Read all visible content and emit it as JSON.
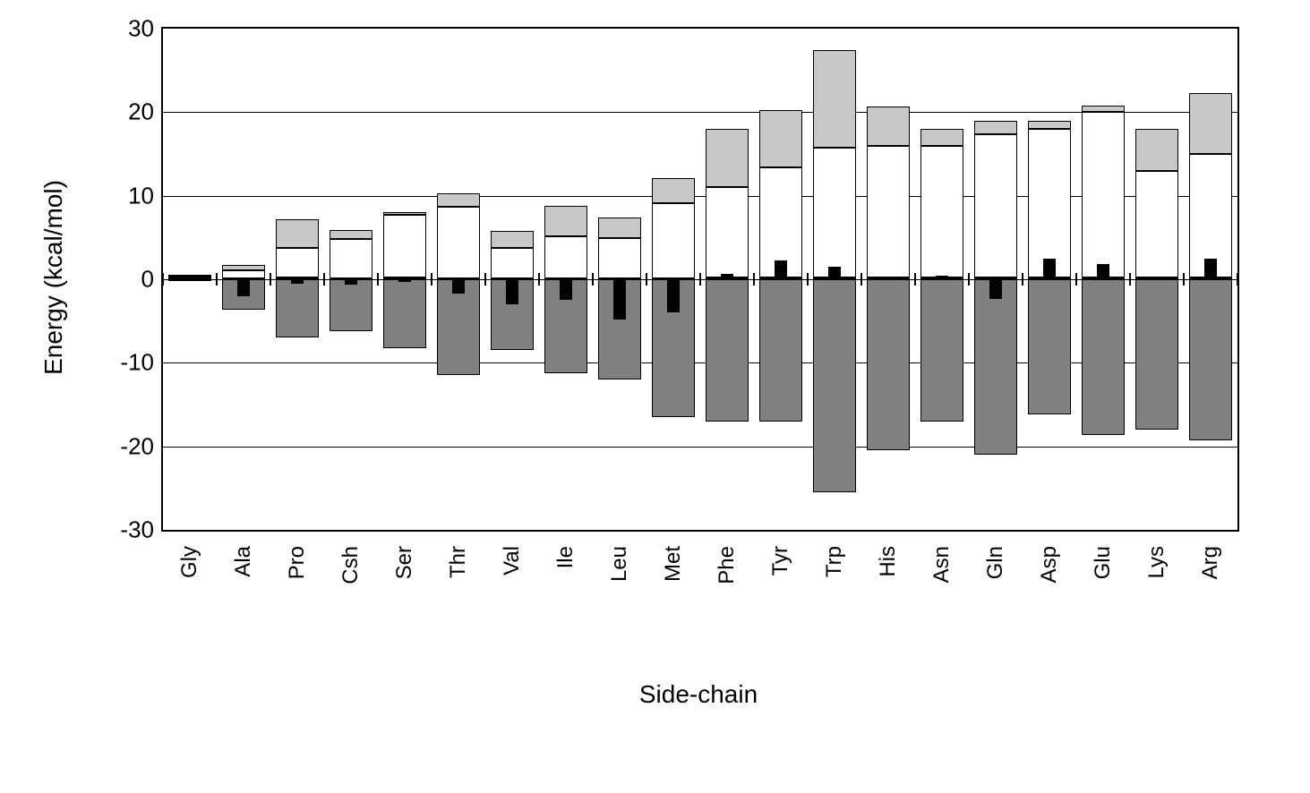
{
  "chart": {
    "type": "stacked-bar-with-negative",
    "ylabel": "Energy (kcal/mol)",
    "xlabel": "Side-chain",
    "background_color": "#ffffff",
    "grid_color": "#000000",
    "axis_color": "#000000",
    "label_fontsize": 28,
    "tick_fontsize": 26,
    "category_fontsize": 24,
    "ylim": [
      -30,
      30
    ],
    "yticks": [
      -30,
      -20,
      -10,
      0,
      10,
      20,
      30
    ],
    "gridlines_at": [
      -20,
      -10,
      0,
      10,
      20
    ],
    "colors": {
      "light_gray": "#c8c8c8",
      "white": "#ffffff",
      "dark_gray": "#808080",
      "black": "#000000",
      "border": "#000000"
    },
    "bar_group_width": 0.8,
    "black_bar_width": 0.22,
    "categories": [
      "Gly",
      "Ala",
      "Pro",
      "Csh",
      "Ser",
      "Thr",
      "Val",
      "Ile",
      "Leu",
      "Met",
      "Phe",
      "Tyr",
      "Trp",
      "His",
      "Asn",
      "Gln",
      "Asp",
      "Glu",
      "Lys",
      "Arg"
    ],
    "series_comment": "Stacked bar has three segments on the positive side (dark_gray base from 0 up, white middle, light_gray top) and a dark_gray segment on the negative side from 0 down; a narrow black bar is overlaid centered on the group going from 0 to its value.",
    "points": [
      {
        "cat": "Gly",
        "neg": -0.2,
        "dark_pos": 0.15,
        "white": 0.2,
        "light": 0.2,
        "black": 0.3
      },
      {
        "cat": "Ala",
        "neg": -3.6,
        "dark_pos": 0.1,
        "white": 1.0,
        "light": 0.6,
        "black": -2.0
      },
      {
        "cat": "Pro",
        "neg": -7.0,
        "dark_pos": 0.2,
        "white": 3.5,
        "light": 3.5,
        "black": -0.5
      },
      {
        "cat": "Csh",
        "neg": -6.2,
        "dark_pos": 0.15,
        "white": 4.7,
        "light": 1.0,
        "black": -0.6
      },
      {
        "cat": "Ser",
        "neg": -8.3,
        "dark_pos": 0.2,
        "white": 7.5,
        "light": 0.3,
        "black": -0.3
      },
      {
        "cat": "Thr",
        "neg": -11.5,
        "dark_pos": 0.15,
        "white": 8.5,
        "light": 1.6,
        "black": -1.7
      },
      {
        "cat": "Val",
        "neg": -8.5,
        "dark_pos": 0.1,
        "white": 3.7,
        "light": 2.0,
        "black": -3.0
      },
      {
        "cat": "Ile",
        "neg": -11.2,
        "dark_pos": 0.15,
        "white": 5.0,
        "light": 3.6,
        "black": -2.5
      },
      {
        "cat": "Leu",
        "neg": -12.0,
        "dark_pos": 0.1,
        "white": 4.8,
        "light": 2.5,
        "black": -4.8
      },
      {
        "cat": "Met",
        "neg": -16.5,
        "dark_pos": 0.15,
        "white": 9.0,
        "light": 3.0,
        "black": -4.0
      },
      {
        "cat": "Phe",
        "neg": -17.0,
        "dark_pos": 0.2,
        "white": 10.8,
        "light": 7.0,
        "black": 0.6
      },
      {
        "cat": "Tyr",
        "neg": -17.0,
        "dark_pos": 0.2,
        "white": 13.2,
        "light": 6.8,
        "black": 2.2
      },
      {
        "cat": "Trp",
        "neg": -25.5,
        "dark_pos": 0.2,
        "white": 15.5,
        "light": 11.7,
        "black": 1.5
      },
      {
        "cat": "His",
        "neg": -20.5,
        "dark_pos": 0.2,
        "white": 15.8,
        "light": 4.7,
        "black": 0.0
      },
      {
        "cat": "Asn",
        "neg": -17.0,
        "dark_pos": 0.2,
        "white": 15.8,
        "light": 2.0,
        "black": 0.4
      },
      {
        "cat": "Gln",
        "neg": -21.0,
        "dark_pos": 0.2,
        "white": 17.2,
        "light": 1.6,
        "black": -2.4
      },
      {
        "cat": "Asp",
        "neg": -16.2,
        "dark_pos": 0.2,
        "white": 17.8,
        "light": 1.0,
        "black": 2.5
      },
      {
        "cat": "Glu",
        "neg": -18.6,
        "dark_pos": 0.2,
        "white": 19.8,
        "light": 0.8,
        "black": 1.8
      },
      {
        "cat": "Lys",
        "neg": -18.0,
        "dark_pos": 0.2,
        "white": 12.8,
        "light": 5.0,
        "black": 0.0
      },
      {
        "cat": "Arg",
        "neg": -19.3,
        "dark_pos": 0.2,
        "white": 14.8,
        "light": 7.3,
        "black": 2.5
      }
    ]
  }
}
